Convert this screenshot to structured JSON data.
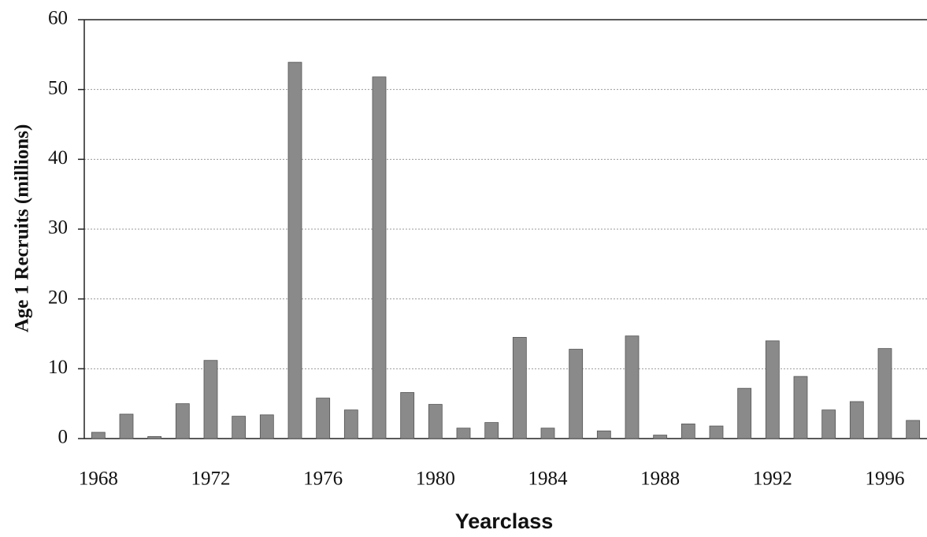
{
  "chart_data": {
    "type": "bar",
    "x_label": "Yearclass",
    "y_label": "Age 1 Recruits (millions)",
    "categories": [
      "1968",
      null,
      null,
      null,
      "1972",
      null,
      null,
      null,
      "1976",
      null,
      null,
      null,
      "1980",
      null,
      null,
      null,
      "1984",
      null,
      null,
      null,
      "1988",
      null,
      null,
      null,
      "1992",
      null,
      null,
      null,
      "1996",
      null
    ],
    "values": [
      0.9,
      3.5,
      0.3,
      5.0,
      11.2,
      3.2,
      3.4,
      53.9,
      5.8,
      4.1,
      51.8,
      6.6,
      4.9,
      1.5,
      2.3,
      14.5,
      1.5,
      12.8,
      1.1,
      14.7,
      0.5,
      2.1,
      1.8,
      7.2,
      14.0,
      8.9,
      4.1,
      5.3,
      12.9,
      2.6
    ],
    "color": "#8a8a8a",
    "ylim": [
      0,
      60
    ],
    "yticks": [
      0,
      10,
      20,
      30,
      40,
      50,
      60
    ],
    "grid": true
  }
}
